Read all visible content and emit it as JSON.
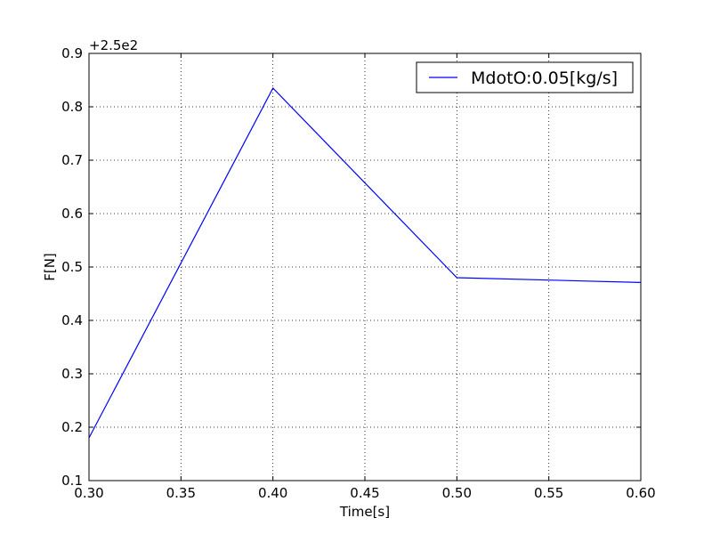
{
  "chart_data": {
    "type": "line",
    "xlabel": "Time[s]",
    "ylabel": "F[N]",
    "y_offset_label": "+2.5e2",
    "xlim": [
      0.3,
      0.6
    ],
    "ylim": [
      0.1,
      0.9
    ],
    "xticks": [
      "0.30",
      "0.35",
      "0.40",
      "0.45",
      "0.50",
      "0.55",
      "0.60"
    ],
    "yticks": [
      "0.1",
      "0.2",
      "0.3",
      "0.4",
      "0.5",
      "0.6",
      "0.7",
      "0.8",
      "0.9"
    ],
    "grid": true,
    "legend_position": "top-right",
    "series": [
      {
        "name": "MdotO:0.05[kg/s]",
        "color": "#0000ff",
        "x": [
          0.3,
          0.4,
          0.5,
          0.6
        ],
        "y": [
          0.18,
          0.835,
          0.48,
          0.471
        ]
      }
    ]
  }
}
